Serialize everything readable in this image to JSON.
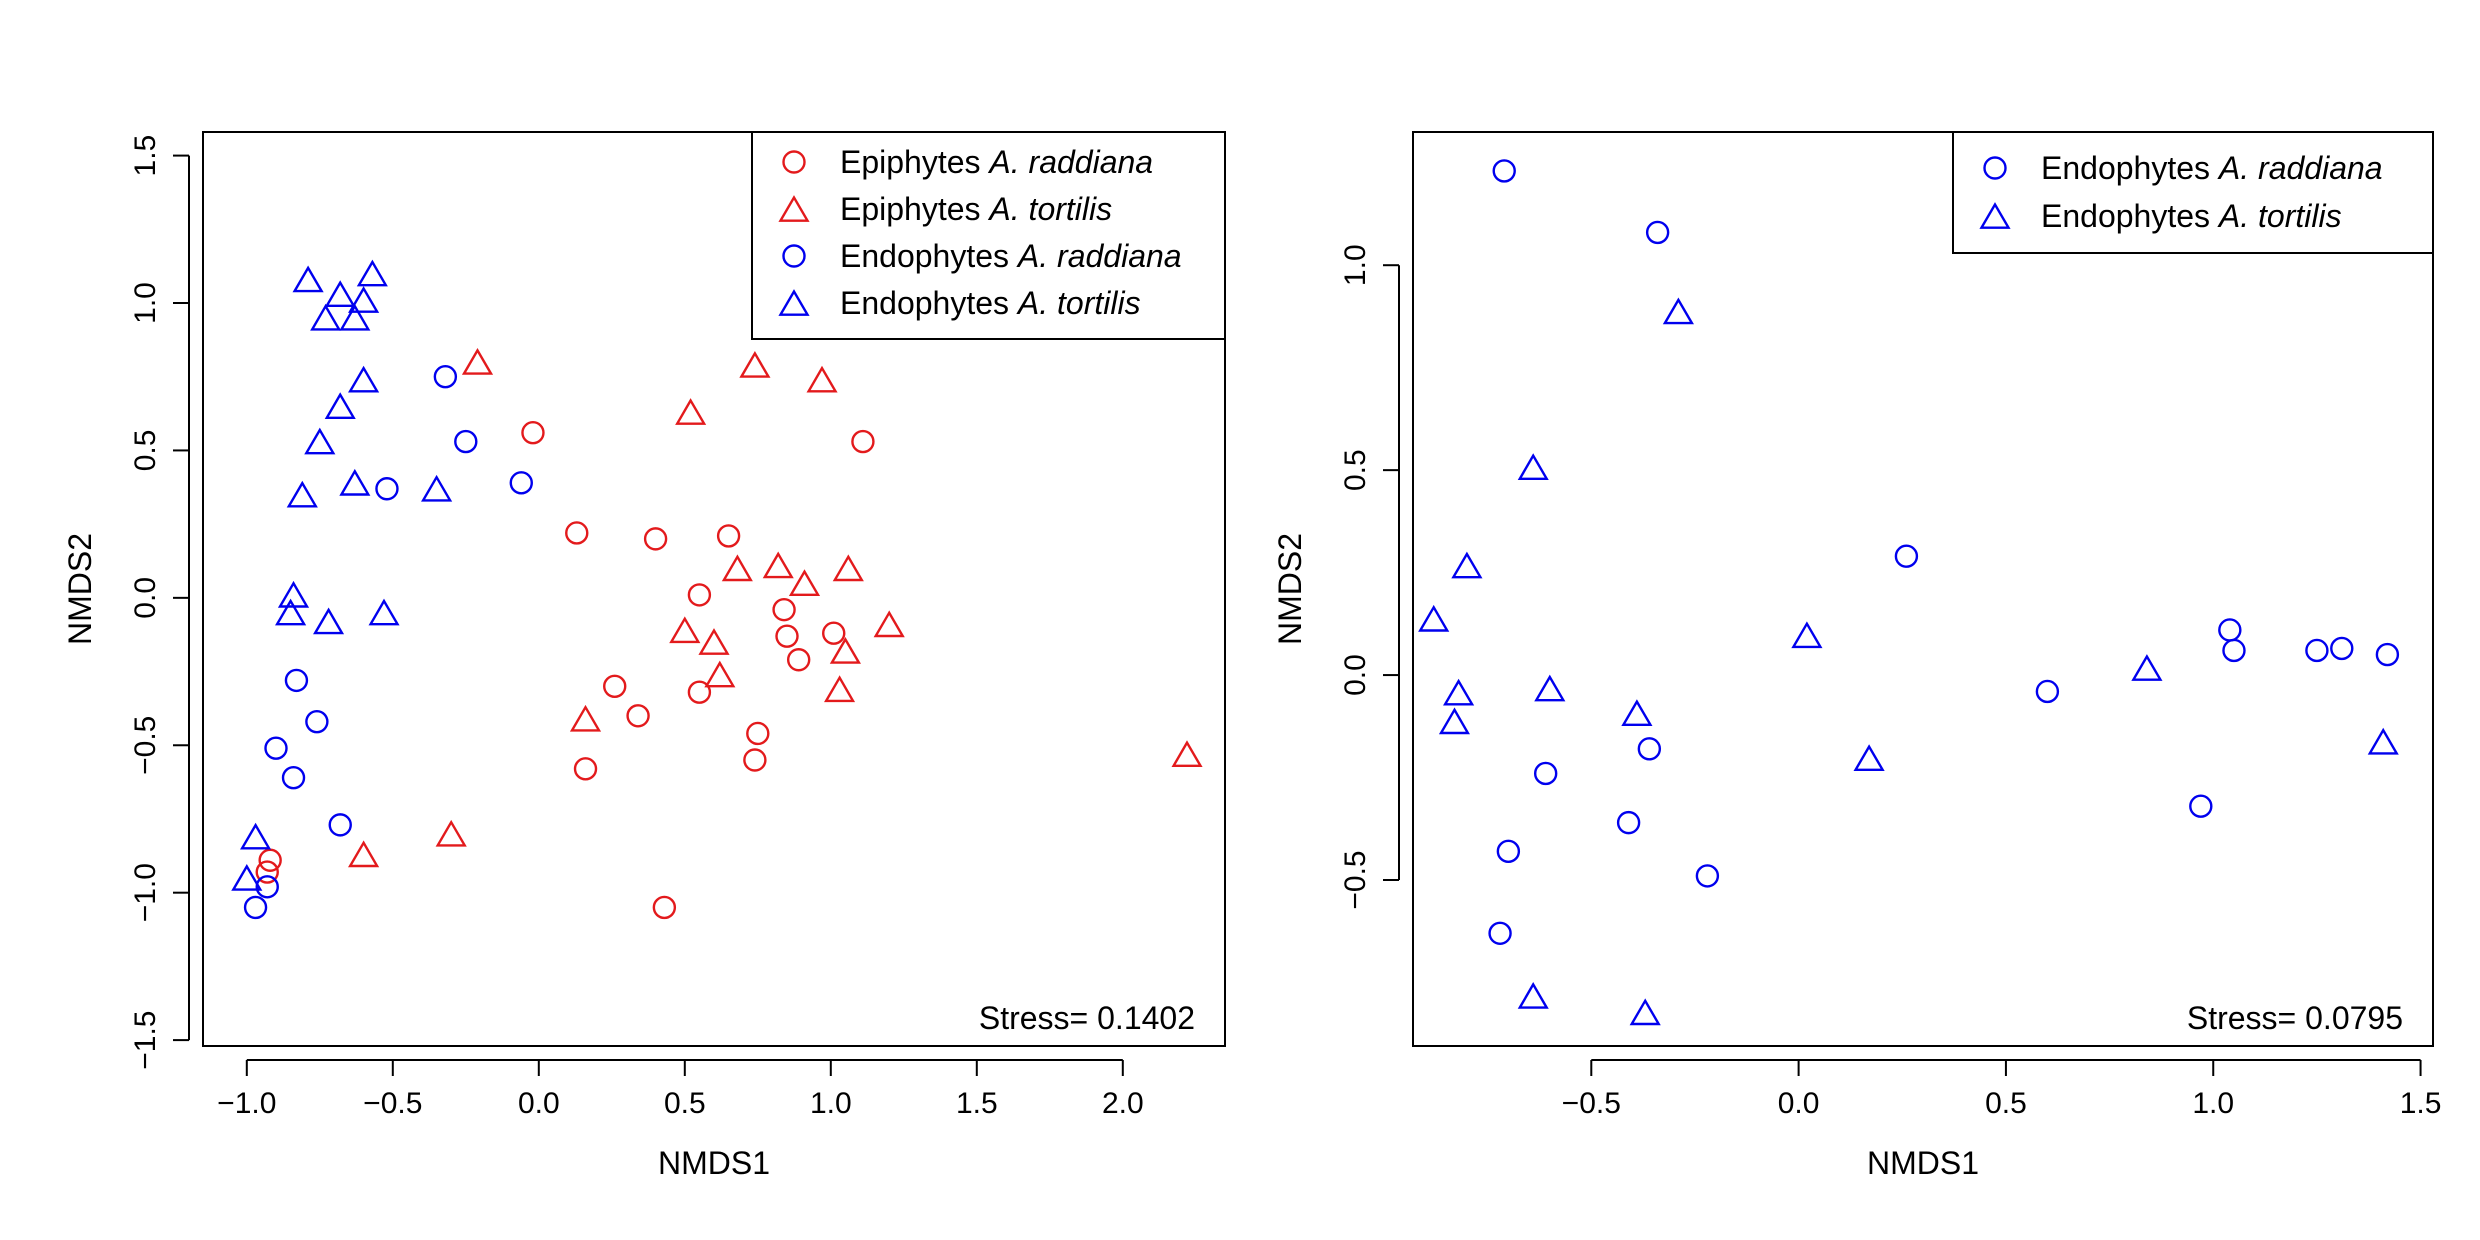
{
  "chart_data": [
    {
      "type": "scatter",
      "xlabel": "NMDS1",
      "ylabel": "NMDS2",
      "xlim": [
        -1.15,
        2.35
      ],
      "ylim": [
        -1.52,
        1.58
      ],
      "xticks": [
        -1.0,
        -0.5,
        0.0,
        0.5,
        1.0,
        1.5,
        2.0
      ],
      "xtick_labels": [
        "−1.0",
        "−0.5",
        "0.0",
        "0.5",
        "1.0",
        "1.5",
        "2.0"
      ],
      "yticks": [
        -1.5,
        -1.0,
        -0.5,
        0.0,
        0.5,
        1.0,
        1.5
      ],
      "ytick_labels": [
        "−1.5",
        "−1.0",
        "−0.5",
        "0.0",
        "0.5",
        "1.0",
        "1.5"
      ],
      "stress_label": "Stress= 0.1402",
      "legend_position": "top-right",
      "series": [
        {
          "name_prefix": "Epiphytes",
          "name_species": "A. raddiana",
          "marker": "circle",
          "color": "#e31a1c",
          "points": [
            [
              -0.92,
              -0.89
            ],
            [
              -0.93,
              -0.93
            ],
            [
              -0.02,
              0.56
            ],
            [
              0.13,
              0.22
            ],
            [
              0.4,
              0.2
            ],
            [
              0.65,
              0.21
            ],
            [
              1.11,
              0.53
            ],
            [
              0.55,
              0.01
            ],
            [
              0.84,
              -0.04
            ],
            [
              1.01,
              -0.12
            ],
            [
              0.85,
              -0.13
            ],
            [
              0.89,
              -0.21
            ],
            [
              0.55,
              -0.32
            ],
            [
              0.26,
              -0.3
            ],
            [
              0.34,
              -0.4
            ],
            [
              0.16,
              -0.58
            ],
            [
              0.75,
              -0.46
            ],
            [
              0.74,
              -0.55
            ],
            [
              0.43,
              -1.05
            ]
          ]
        },
        {
          "name_prefix": "Epiphytes",
          "name_species": "A. tortilis",
          "marker": "triangle",
          "color": "#e31a1c",
          "points": [
            [
              -0.21,
              0.79
            ],
            [
              0.52,
              0.62
            ],
            [
              0.74,
              0.78
            ],
            [
              0.97,
              0.73
            ],
            [
              0.68,
              0.09
            ],
            [
              0.82,
              0.1
            ],
            [
              0.91,
              0.04
            ],
            [
              1.06,
              0.09
            ],
            [
              0.5,
              -0.12
            ],
            [
              0.6,
              -0.16
            ],
            [
              0.62,
              -0.27
            ],
            [
              1.2,
              -0.1
            ],
            [
              1.05,
              -0.19
            ],
            [
              1.03,
              -0.32
            ],
            [
              0.16,
              -0.42
            ],
            [
              -0.3,
              -0.81
            ],
            [
              -0.6,
              -0.88
            ],
            [
              2.22,
              -0.54
            ]
          ]
        },
        {
          "name_prefix": "Endophytes",
          "name_species": "A. raddiana",
          "marker": "circle",
          "color": "#0000ee",
          "points": [
            [
              -0.32,
              0.75
            ],
            [
              -0.25,
              0.53
            ],
            [
              -0.06,
              0.39
            ],
            [
              -0.52,
              0.37
            ],
            [
              -0.83,
              -0.28
            ],
            [
              -0.76,
              -0.42
            ],
            [
              -0.9,
              -0.51
            ],
            [
              -0.84,
              -0.61
            ],
            [
              -0.68,
              -0.77
            ],
            [
              -0.93,
              -0.98
            ],
            [
              -0.97,
              -1.05
            ]
          ]
        },
        {
          "name_prefix": "Endophytes",
          "name_species": "A. tortilis",
          "marker": "triangle",
          "color": "#0000ee",
          "points": [
            [
              -0.79,
              1.07
            ],
            [
              -0.73,
              0.94
            ],
            [
              -0.68,
              1.02
            ],
            [
              -0.63,
              0.94
            ],
            [
              -0.6,
              1.0
            ],
            [
              -0.57,
              1.09
            ],
            [
              -0.6,
              0.73
            ],
            [
              -0.68,
              0.64
            ],
            [
              -0.75,
              0.52
            ],
            [
              -0.81,
              0.34
            ],
            [
              -0.63,
              0.38
            ],
            [
              -0.35,
              0.36
            ],
            [
              -0.84,
              0.0
            ],
            [
              -0.85,
              -0.06
            ],
            [
              -0.72,
              -0.09
            ],
            [
              -0.53,
              -0.06
            ],
            [
              -0.97,
              -0.82
            ],
            [
              -1.0,
              -0.96
            ]
          ]
        }
      ]
    },
    {
      "type": "scatter",
      "xlabel": "NMDS1",
      "ylabel": "NMDS2",
      "xlim": [
        -0.93,
        1.53
      ],
      "ylim": [
        -0.905,
        1.325
      ],
      "xticks": [
        -0.5,
        0.0,
        0.5,
        1.0,
        1.5
      ],
      "xtick_labels": [
        "−0.5",
        "0.0",
        "0.5",
        "1.0",
        "1.5"
      ],
      "yticks": [
        -0.5,
        0.0,
        0.5,
        1.0
      ],
      "ytick_labels": [
        "−0.5",
        "0.0",
        "0.5",
        "1.0"
      ],
      "stress_label": "Stress= 0.0795",
      "legend_position": "top-right",
      "series": [
        {
          "name_prefix": "Endophytes",
          "name_species": "A. raddiana",
          "marker": "circle",
          "color": "#0000ee",
          "points": [
            [
              -0.71,
              1.23
            ],
            [
              -0.34,
              1.08
            ],
            [
              0.26,
              0.29
            ],
            [
              -0.36,
              -0.18
            ],
            [
              -0.61,
              -0.24
            ],
            [
              -0.41,
              -0.36
            ],
            [
              -0.7,
              -0.43
            ],
            [
              -0.22,
              -0.49
            ],
            [
              -0.72,
              -0.63
            ],
            [
              0.6,
              -0.04
            ],
            [
              1.04,
              0.11
            ],
            [
              1.05,
              0.06
            ],
            [
              1.25,
              0.06
            ],
            [
              1.31,
              0.065
            ],
            [
              1.42,
              0.05
            ],
            [
              0.97,
              -0.32
            ]
          ]
        },
        {
          "name_prefix": "Endophytes",
          "name_species": "A. tortilis",
          "marker": "triangle",
          "color": "#0000ee",
          "points": [
            [
              -0.29,
              0.88
            ],
            [
              -0.64,
              0.5
            ],
            [
              -0.8,
              0.26
            ],
            [
              -0.88,
              0.13
            ],
            [
              -0.82,
              -0.05
            ],
            [
              -0.83,
              -0.12
            ],
            [
              -0.6,
              -0.04
            ],
            [
              -0.39,
              -0.1
            ],
            [
              0.02,
              0.09
            ],
            [
              0.17,
              -0.21
            ],
            [
              0.84,
              0.01
            ],
            [
              1.41,
              -0.17
            ],
            [
              -0.64,
              -0.79
            ],
            [
              -0.37,
              -0.83
            ]
          ]
        }
      ]
    }
  ]
}
